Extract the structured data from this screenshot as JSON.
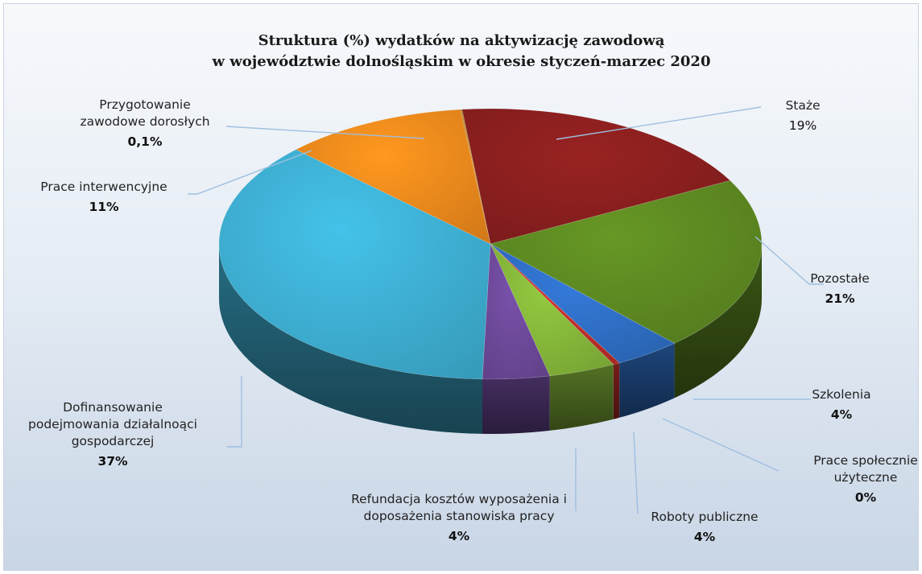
{
  "chart_data": {
    "type": "pie",
    "style": "3d",
    "title": "Struktura (%) wydatków na aktywizację zawodową",
    "subtitle": "w województwie dolnośląskim w okresie styczeń-marzec 2020",
    "slices": [
      {
        "key": "staze",
        "label_lines": [
          "Staże"
        ],
        "value_label": "19%",
        "value": 19,
        "color": "#8b1f1f",
        "bold": false
      },
      {
        "key": "pozostale",
        "label_lines": [
          "Pozostałe"
        ],
        "value_label": "21%",
        "value": 21,
        "color": "#5e8a22",
        "bold": true
      },
      {
        "key": "szkolenia",
        "label_lines": [
          "Szkolenia"
        ],
        "value_label": "4%",
        "value": 4,
        "color": "#2f6fc6",
        "bold": true
      },
      {
        "key": "prace_spoleczne",
        "label_lines": [
          "Prace społecznie",
          "użyteczne"
        ],
        "value_label": "0%",
        "value": 0.4,
        "color": "#c0302a",
        "bold": true
      },
      {
        "key": "roboty_publiczne",
        "label_lines": [
          "Roboty publiczne"
        ],
        "value_label": "4%",
        "value": 4,
        "color": "#86b83a",
        "bold": true
      },
      {
        "key": "refundacja",
        "label_lines": [
          "Refundacja kosztów wyposażenia i",
          "doposażenia stanowiska pracy"
        ],
        "value_label": "4%",
        "value": 4,
        "color": "#6e4a9b",
        "bold": true
      },
      {
        "key": "dofinansowanie",
        "label_lines": [
          "Dofinansowanie",
          "podejmowania działalnoąci",
          "gospodarczej"
        ],
        "value_label": "37%",
        "value": 37,
        "color": "#3eb0d4",
        "bold": true
      },
      {
        "key": "prace_interwencyjne",
        "label_lines": [
          "Prace interwencyjne"
        ],
        "value_label": "11%",
        "value": 11,
        "color": "#f08a1c",
        "bold": true
      },
      {
        "key": "przygotowanie",
        "label_lines": [
          "Przygotowanie",
          "zawodowe dorosłych"
        ],
        "value_label": "0,1%",
        "value": 0.1,
        "color": "#b8872a",
        "bold": true
      }
    ]
  }
}
